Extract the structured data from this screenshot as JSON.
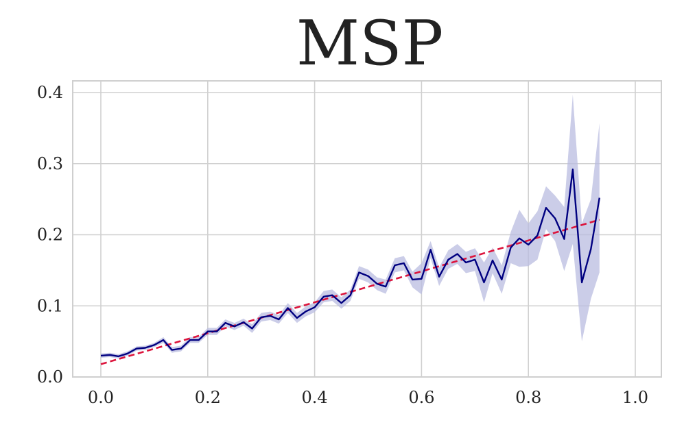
{
  "chart_data": {
    "type": "line",
    "title": "MSP",
    "xlabel": "",
    "ylabel": "",
    "xlim": [
      -0.07,
      1.05
    ],
    "ylim": [
      0.0,
      0.41
    ],
    "grid": true,
    "x_ticks": [
      "0.0",
      "0.2",
      "0.4",
      "0.6",
      "0.8",
      "1.0"
    ],
    "y_ticks": [
      "0.0",
      "0.1",
      "0.2",
      "0.3",
      "0.4"
    ],
    "colors": {
      "line": "#000080",
      "band": "#b9bce0",
      "reference": "#dc143c",
      "grid": "#d0d0d0",
      "axes": "#cfcfcf"
    },
    "series": [
      {
        "values": [
          [
            0.0,
            0.03
          ],
          [
            0.017,
            0.031
          ],
          [
            0.033,
            0.029
          ],
          [
            0.05,
            0.033
          ],
          [
            0.067,
            0.04
          ],
          [
            0.083,
            0.041
          ],
          [
            0.1,
            0.045
          ],
          [
            0.117,
            0.052
          ],
          [
            0.133,
            0.038
          ],
          [
            0.15,
            0.04
          ],
          [
            0.167,
            0.052
          ],
          [
            0.183,
            0.052
          ],
          [
            0.2,
            0.064
          ],
          [
            0.217,
            0.064
          ],
          [
            0.233,
            0.076
          ],
          [
            0.25,
            0.071
          ],
          [
            0.267,
            0.077
          ],
          [
            0.283,
            0.068
          ],
          [
            0.3,
            0.084
          ],
          [
            0.317,
            0.086
          ],
          [
            0.333,
            0.081
          ],
          [
            0.35,
            0.097
          ],
          [
            0.367,
            0.083
          ],
          [
            0.383,
            0.092
          ],
          [
            0.4,
            0.098
          ],
          [
            0.417,
            0.113
          ],
          [
            0.433,
            0.115
          ],
          [
            0.45,
            0.104
          ],
          [
            0.467,
            0.115
          ],
          [
            0.483,
            0.147
          ],
          [
            0.5,
            0.142
          ],
          [
            0.517,
            0.131
          ],
          [
            0.533,
            0.127
          ],
          [
            0.55,
            0.157
          ],
          [
            0.567,
            0.16
          ],
          [
            0.583,
            0.137
          ],
          [
            0.6,
            0.138
          ],
          [
            0.617,
            0.179
          ],
          [
            0.633,
            0.141
          ],
          [
            0.65,
            0.165
          ],
          [
            0.667,
            0.173
          ],
          [
            0.683,
            0.161
          ],
          [
            0.7,
            0.165
          ],
          [
            0.717,
            0.133
          ],
          [
            0.733,
            0.164
          ],
          [
            0.75,
            0.137
          ],
          [
            0.767,
            0.182
          ],
          [
            0.783,
            0.195
          ],
          [
            0.8,
            0.186
          ],
          [
            0.817,
            0.199
          ],
          [
            0.833,
            0.238
          ],
          [
            0.85,
            0.223
          ],
          [
            0.867,
            0.194
          ],
          [
            0.883,
            0.292
          ],
          [
            0.9,
            0.133
          ],
          [
            0.917,
            0.18
          ],
          [
            0.933,
            0.252
          ]
        ],
        "band_halfwidth": [
          0.003,
          0.003,
          0.003,
          0.003,
          0.003,
          0.003,
          0.003,
          0.004,
          0.004,
          0.004,
          0.004,
          0.004,
          0.005,
          0.005,
          0.005,
          0.005,
          0.005,
          0.006,
          0.006,
          0.006,
          0.006,
          0.007,
          0.007,
          0.007,
          0.007,
          0.008,
          0.008,
          0.008,
          0.008,
          0.009,
          0.009,
          0.009,
          0.01,
          0.01,
          0.01,
          0.011,
          0.022,
          0.012,
          0.013,
          0.013,
          0.014,
          0.015,
          0.016,
          0.028,
          0.018,
          0.02,
          0.022,
          0.04,
          0.03,
          0.034,
          0.03,
          0.032,
          0.045,
          0.105,
          0.083,
          0.07,
          0.105
        ]
      }
    ],
    "reference_line": {
      "values": [
        [
          0.0,
          0.018
        ],
        [
          0.933,
          0.221
        ]
      ]
    }
  }
}
